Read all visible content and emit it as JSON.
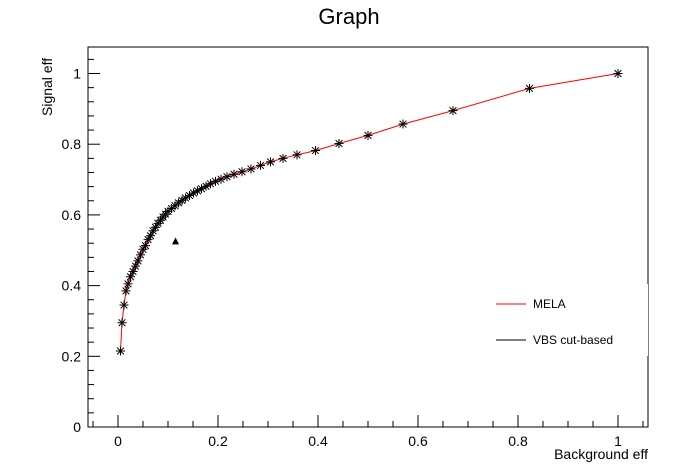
{
  "chart_data": {
    "type": "line",
    "title": "Graph",
    "xlabel": "Background eff",
    "ylabel": "Signal eff",
    "xlim": [
      -0.06,
      1.06
    ],
    "ylim": [
      0,
      1.075
    ],
    "x_ticks": [
      "0",
      "0.2",
      "0.4",
      "0.6",
      "0.8",
      "1"
    ],
    "y_ticks": [
      "0",
      "0.2",
      "0.4",
      "0.6",
      "0.8",
      "1"
    ],
    "grid": false,
    "legend_position": "right",
    "series": [
      {
        "name": "MELA",
        "color": "#ff0000",
        "marker": "asterisk",
        "x": [
          0.005,
          0.008,
          0.012,
          0.016,
          0.02,
          0.025,
          0.03,
          0.035,
          0.04,
          0.045,
          0.05,
          0.055,
          0.06,
          0.065,
          0.07,
          0.075,
          0.08,
          0.085,
          0.09,
          0.095,
          0.1,
          0.107,
          0.114,
          0.121,
          0.128,
          0.135,
          0.143,
          0.151,
          0.159,
          0.167,
          0.176,
          0.185,
          0.195,
          0.206,
          0.218,
          0.232,
          0.248,
          0.266,
          0.285,
          0.305,
          0.33,
          0.358,
          0.395,
          0.442,
          0.5,
          0.57,
          0.67,
          0.823,
          1.0
        ],
        "y": [
          0.215,
          0.295,
          0.345,
          0.385,
          0.405,
          0.425,
          0.44,
          0.455,
          0.47,
          0.487,
          0.503,
          0.513,
          0.53,
          0.541,
          0.555,
          0.565,
          0.576,
          0.585,
          0.594,
          0.602,
          0.61,
          0.618,
          0.626,
          0.634,
          0.641,
          0.648,
          0.655,
          0.662,
          0.668,
          0.674,
          0.681,
          0.688,
          0.695,
          0.701,
          0.708,
          0.715,
          0.722,
          0.73,
          0.74,
          0.75,
          0.76,
          0.77,
          0.782,
          0.802,
          0.825,
          0.857,
          0.895,
          0.958,
          1.0
        ]
      },
      {
        "name": "VBS cut-based",
        "color": "#000000",
        "marker": "triangle",
        "x": [
          0.115
        ],
        "y": [
          0.525
        ]
      }
    ]
  }
}
